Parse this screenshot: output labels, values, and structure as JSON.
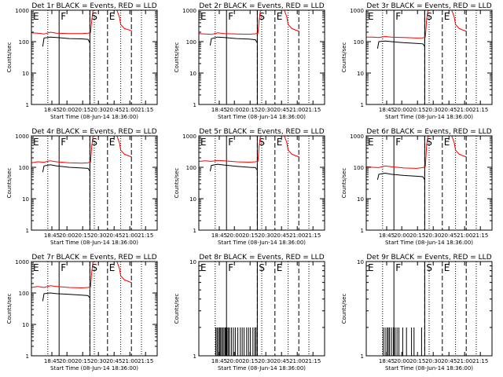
{
  "figure": {
    "layout": "3x3 grid of detector light curves",
    "y_scale": "log",
    "series_colors": {
      "events": "#000000",
      "lld": "#ff0000"
    }
  },
  "chart_data": [
    {
      "type": "line",
      "title": "Det 1r BLACK = Events, RED = LLD",
      "xlabel": "Start Time (08-Jun-14 18:36:00)",
      "ylabel": "Counts/sec",
      "xticks": [
        "18:45",
        "20:00",
        "20:15",
        "20:30",
        "20:45",
        "21:00",
        "21:15"
      ],
      "yticks": [
        "1",
        "10",
        "100",
        "1000"
      ],
      "ylim": [
        1,
        1000
      ],
      "markers": [
        {
          "label": "E",
          "x": 0.0,
          "style": "solid"
        },
        {
          "label": "F",
          "x": 0.22,
          "style": "solid"
        },
        {
          "label": "S",
          "x": 0.465,
          "style": "solid"
        },
        {
          "label": "E",
          "x": 0.605,
          "style": "dashed"
        }
      ],
      "dotted_lines": [
        0.13,
        0.5,
        0.71,
        0.875
      ],
      "dashed_lines": [
        0.465,
        0.605,
        0.795
      ],
      "series": [
        {
          "name": "LLD",
          "x": [
            0.0,
            0.05,
            0.1,
            0.15,
            0.2,
            0.3,
            0.4,
            0.45,
            0.47,
            0.48,
            0.49,
            0.5,
            0.6,
            0.68,
            0.7,
            0.71,
            0.74,
            0.8
          ],
          "values": [
            190,
            185,
            175,
            200,
            185,
            180,
            180,
            185,
            190,
            500,
            1000,
            1000,
            1000,
            1000,
            600,
            350,
            260,
            220
          ]
        },
        {
          "name": "Events",
          "x": [
            0.09,
            0.1,
            0.15,
            0.2,
            0.3,
            0.4,
            0.45,
            0.465
          ],
          "values": [
            70,
            130,
            140,
            135,
            125,
            122,
            118,
            90
          ]
        }
      ]
    },
    {
      "type": "line",
      "title": "Det 2r BLACK = Events, RED = LLD",
      "xlabel": "Start Time (08-Jun-14 18:36:00)",
      "ylabel": "Counts/sec",
      "xticks": [
        "18:45",
        "20:00",
        "20:15",
        "20:30",
        "20:45",
        "21:00",
        "21:15"
      ],
      "yticks": [
        "1",
        "10",
        "100",
        "1000"
      ],
      "ylim": [
        1,
        1000
      ],
      "markers": [
        {
          "label": "E",
          "x": 0.0,
          "style": "solid"
        },
        {
          "label": "F",
          "x": 0.22,
          "style": "solid"
        },
        {
          "label": "S",
          "x": 0.465,
          "style": "solid"
        },
        {
          "label": "E",
          "x": 0.605,
          "style": "dashed"
        }
      ],
      "dotted_lines": [
        0.13,
        0.5,
        0.71,
        0.875
      ],
      "dashed_lines": [
        0.465,
        0.605,
        0.795
      ],
      "series": [
        {
          "name": "LLD",
          "x": [
            0.0,
            0.05,
            0.1,
            0.15,
            0.2,
            0.3,
            0.4,
            0.45,
            0.47,
            0.48,
            0.49,
            0.5,
            0.6,
            0.68,
            0.7,
            0.71,
            0.74,
            0.8
          ],
          "values": [
            180,
            175,
            170,
            190,
            180,
            175,
            172,
            178,
            185,
            500,
            1000,
            1000,
            1000,
            1000,
            600,
            350,
            260,
            210
          ]
        },
        {
          "name": "Events",
          "x": [
            0.09,
            0.1,
            0.15,
            0.2,
            0.3,
            0.4,
            0.45,
            0.465
          ],
          "values": [
            75,
            125,
            140,
            135,
            125,
            120,
            115,
            90
          ]
        }
      ]
    },
    {
      "type": "line",
      "title": "Det 3r BLACK = Events, RED = LLD",
      "xlabel": "Start Time (08-Jun-14 18:36:00)",
      "ylabel": "Counts/sec",
      "xticks": [
        "18:45",
        "20:00",
        "20:15",
        "20:30",
        "20:45",
        "21:00",
        "21:15"
      ],
      "yticks": [
        "1",
        "10",
        "100",
        "1000"
      ],
      "ylim": [
        1,
        1000
      ],
      "markers": [
        {
          "label": "E",
          "x": 0.0,
          "style": "solid"
        },
        {
          "label": "F",
          "x": 0.22,
          "style": "solid"
        },
        {
          "label": "S",
          "x": 0.465,
          "style": "solid"
        },
        {
          "label": "E",
          "x": 0.605,
          "style": "dashed"
        }
      ],
      "dotted_lines": [
        0.13,
        0.5,
        0.71,
        0.875
      ],
      "dashed_lines": [
        0.465,
        0.605,
        0.795
      ],
      "series": [
        {
          "name": "LLD",
          "x": [
            0.0,
            0.05,
            0.1,
            0.15,
            0.2,
            0.3,
            0.4,
            0.45,
            0.47,
            0.48,
            0.49,
            0.5,
            0.6,
            0.68,
            0.7,
            0.71,
            0.74,
            0.8
          ],
          "values": [
            140,
            140,
            135,
            145,
            140,
            135,
            130,
            132,
            140,
            500,
            1000,
            1000,
            1000,
            1000,
            600,
            350,
            260,
            210
          ]
        },
        {
          "name": "Events",
          "x": [
            0.09,
            0.1,
            0.15,
            0.2,
            0.3,
            0.4,
            0.45,
            0.465
          ],
          "values": [
            60,
            100,
            105,
            100,
            92,
            88,
            85,
            70
          ]
        }
      ]
    },
    {
      "type": "line",
      "title": "Det 4r BLACK = Events, RED = LLD",
      "xlabel": "Start Time (08-Jun-14 18:36:00)",
      "ylabel": "Counts/sec",
      "xticks": [
        "18:45",
        "20:00",
        "20:15",
        "20:30",
        "20:45",
        "21:00",
        "21:15"
      ],
      "yticks": [
        "1",
        "10",
        "100",
        "1000"
      ],
      "ylim": [
        1,
        1000
      ],
      "markers": [
        {
          "label": "E",
          "x": 0.0,
          "style": "solid"
        },
        {
          "label": "F",
          "x": 0.22,
          "style": "solid"
        },
        {
          "label": "S",
          "x": 0.465,
          "style": "solid"
        },
        {
          "label": "E",
          "x": 0.605,
          "style": "dashed"
        }
      ],
      "dotted_lines": [
        0.13,
        0.5,
        0.71,
        0.875
      ],
      "dashed_lines": [
        0.465,
        0.605,
        0.795
      ],
      "series": [
        {
          "name": "LLD",
          "x": [
            0.0,
            0.05,
            0.1,
            0.15,
            0.2,
            0.3,
            0.4,
            0.45,
            0.47,
            0.48,
            0.49,
            0.5,
            0.6,
            0.68,
            0.7,
            0.71,
            0.74,
            0.8
          ],
          "values": [
            140,
            150,
            145,
            160,
            150,
            140,
            135,
            140,
            145,
            500,
            1000,
            1000,
            1000,
            1000,
            600,
            350,
            260,
            210
          ]
        },
        {
          "name": "Events",
          "x": [
            0.09,
            0.1,
            0.15,
            0.2,
            0.3,
            0.4,
            0.45,
            0.465
          ],
          "values": [
            70,
            110,
            120,
            110,
            100,
            95,
            92,
            75
          ]
        }
      ]
    },
    {
      "type": "line",
      "title": "Det 5r BLACK = Events, RED = LLD",
      "xlabel": "Start Time (08-Jun-14 18:36:00)",
      "ylabel": "Counts/sec",
      "xticks": [
        "18:45",
        "20:00",
        "20:15",
        "20:30",
        "20:45",
        "21:00",
        "21:15"
      ],
      "yticks": [
        "1",
        "10",
        "100",
        "1000"
      ],
      "ylim": [
        1,
        1000
      ],
      "markers": [
        {
          "label": "E",
          "x": 0.0,
          "style": "solid"
        },
        {
          "label": "F",
          "x": 0.22,
          "style": "solid"
        },
        {
          "label": "S",
          "x": 0.465,
          "style": "solid"
        },
        {
          "label": "E",
          "x": 0.605,
          "style": "dashed"
        }
      ],
      "dotted_lines": [
        0.13,
        0.5,
        0.71,
        0.875
      ],
      "dashed_lines": [
        0.465,
        0.605,
        0.795
      ],
      "series": [
        {
          "name": "LLD",
          "x": [
            0.0,
            0.05,
            0.1,
            0.15,
            0.2,
            0.3,
            0.4,
            0.45,
            0.47,
            0.48,
            0.49,
            0.5,
            0.6,
            0.68,
            0.7,
            0.71,
            0.74,
            0.8
          ],
          "values": [
            155,
            160,
            155,
            165,
            160,
            150,
            145,
            150,
            155,
            500,
            1000,
            1000,
            1000,
            1000,
            600,
            350,
            260,
            210
          ]
        },
        {
          "name": "Events",
          "x": [
            0.09,
            0.1,
            0.15,
            0.2,
            0.3,
            0.4,
            0.45,
            0.465
          ],
          "values": [
            75,
            115,
            125,
            118,
            108,
            100,
            98,
            80
          ]
        }
      ]
    },
    {
      "type": "line",
      "title": "Det 6r BLACK = Events, RED = LLD",
      "xlabel": "Start Time (08-Jun-14 18:36:00)",
      "ylabel": "Counts/sec",
      "xticks": [
        "18:45",
        "20:00",
        "20:15",
        "20:30",
        "20:45",
        "21:00",
        "21:15"
      ],
      "yticks": [
        "1",
        "10",
        "100",
        "1000"
      ],
      "ylim": [
        1,
        1000
      ],
      "markers": [
        {
          "label": "E",
          "x": 0.0,
          "style": "solid"
        },
        {
          "label": "F",
          "x": 0.22,
          "style": "solid"
        },
        {
          "label": "S",
          "x": 0.465,
          "style": "solid"
        },
        {
          "label": "E",
          "x": 0.605,
          "style": "dashed"
        }
      ],
      "dotted_lines": [
        0.13,
        0.5,
        0.71,
        0.875
      ],
      "dashed_lines": [
        0.465,
        0.605,
        0.795
      ],
      "series": [
        {
          "name": "LLD",
          "x": [
            0.0,
            0.05,
            0.1,
            0.15,
            0.2,
            0.3,
            0.4,
            0.45,
            0.47,
            0.48,
            0.49,
            0.5,
            0.6,
            0.68,
            0.7,
            0.71,
            0.74,
            0.8
          ],
          "values": [
            105,
            100,
            98,
            110,
            105,
            95,
            92,
            98,
            105,
            500,
            1000,
            1000,
            1000,
            1000,
            600,
            350,
            260,
            210
          ]
        },
        {
          "name": "Events",
          "x": [
            0.09,
            0.1,
            0.15,
            0.2,
            0.3,
            0.4,
            0.45,
            0.465
          ],
          "values": [
            40,
            60,
            65,
            60,
            55,
            52,
            50,
            40
          ]
        }
      ]
    },
    {
      "type": "line",
      "title": "Det 7r BLACK = Events, RED = LLD",
      "xlabel": "Start Time (08-Jun-14 18:36:00)",
      "ylabel": "Counts/sec",
      "xticks": [
        "18:45",
        "20:00",
        "20:15",
        "20:30",
        "20:45",
        "21:00",
        "21:15"
      ],
      "yticks": [
        "1",
        "10",
        "100",
        "1000"
      ],
      "ylim": [
        1,
        1000
      ],
      "markers": [
        {
          "label": "E",
          "x": 0.0,
          "style": "solid"
        },
        {
          "label": "F",
          "x": 0.22,
          "style": "solid"
        },
        {
          "label": "S",
          "x": 0.465,
          "style": "solid"
        },
        {
          "label": "E",
          "x": 0.605,
          "style": "dashed"
        }
      ],
      "dotted_lines": [
        0.13,
        0.5,
        0.71,
        0.875
      ],
      "dashed_lines": [
        0.465,
        0.605,
        0.795
      ],
      "series": [
        {
          "name": "LLD",
          "x": [
            0.0,
            0.05,
            0.1,
            0.15,
            0.2,
            0.3,
            0.4,
            0.45,
            0.47,
            0.48,
            0.49,
            0.5,
            0.6,
            0.68,
            0.7,
            0.71,
            0.74,
            0.8
          ],
          "values": [
            150,
            160,
            150,
            170,
            160,
            150,
            145,
            150,
            155,
            500,
            1000,
            1000,
            1000,
            1000,
            600,
            350,
            260,
            210
          ]
        },
        {
          "name": "Events",
          "x": [
            0.09,
            0.1,
            0.15,
            0.2,
            0.3,
            0.4,
            0.45,
            0.465
          ],
          "values": [
            55,
            95,
            100,
            95,
            90,
            85,
            82,
            70
          ]
        }
      ]
    },
    {
      "type": "line",
      "title": "Det 8r BLACK = Events, RED = LLD",
      "xlabel": "Start Time (08-Jun-14 18:36:00)",
      "ylabel": "Counts/sec",
      "xticks": [
        "18:45",
        "20:00",
        "20:15",
        "20:30",
        "20:45",
        "21:00",
        "21:15"
      ],
      "yticks": [
        "1",
        "10"
      ],
      "ylim": [
        1,
        10
      ],
      "markers": [
        {
          "label": "E",
          "x": 0.0,
          "style": "solid"
        },
        {
          "label": "F",
          "x": 0.22,
          "style": "solid"
        },
        {
          "label": "S",
          "x": 0.465,
          "style": "solid"
        },
        {
          "label": "E",
          "x": 0.605,
          "style": "dashed"
        }
      ],
      "dotted_lines": [
        0.13,
        0.5,
        0.71,
        0.875
      ],
      "dashed_lines": [
        0.465,
        0.605,
        0.795
      ],
      "series": [
        {
          "name": "Events",
          "spikes": true,
          "x": [
            0.135,
            0.145,
            0.155,
            0.165,
            0.17,
            0.18,
            0.19,
            0.2,
            0.21,
            0.215,
            0.225,
            0.235,
            0.245,
            0.26,
            0.275,
            0.29,
            0.31,
            0.33,
            0.345,
            0.36,
            0.38,
            0.395,
            0.41,
            0.43,
            0.445,
            0.455
          ],
          "values": [
            2,
            2,
            2,
            2,
            2,
            2,
            2,
            2,
            2,
            2,
            2,
            2,
            2,
            2,
            2,
            2,
            2,
            2,
            2,
            2,
            2,
            2,
            2,
            2,
            2,
            2
          ]
        }
      ]
    },
    {
      "type": "line",
      "title": "Det 9r BLACK = Events, RED = LLD",
      "xlabel": "Start Time (08-Jun-14 18:36:00)",
      "ylabel": "Counts/sec",
      "xticks": [
        "18:45",
        "20:00",
        "20:15",
        "20:30",
        "20:45",
        "21:00",
        "21:15"
      ],
      "yticks": [
        "1",
        "10"
      ],
      "ylim": [
        1,
        10
      ],
      "markers": [
        {
          "label": "E",
          "x": 0.0,
          "style": "solid"
        },
        {
          "label": "F",
          "x": 0.22,
          "style": "solid"
        },
        {
          "label": "S",
          "x": 0.465,
          "style": "solid"
        },
        {
          "label": "E",
          "x": 0.605,
          "style": "dashed"
        }
      ],
      "dotted_lines": [
        0.13,
        0.5,
        0.71,
        0.875
      ],
      "dashed_lines": [
        0.465,
        0.605,
        0.795
      ],
      "series": [
        {
          "name": "Events",
          "spikes": true,
          "x": [
            0.135,
            0.15,
            0.165,
            0.175,
            0.185,
            0.2,
            0.215,
            0.23,
            0.245,
            0.26,
            0.29,
            0.32,
            0.36,
            0.38,
            0.44
          ],
          "values": [
            2,
            2,
            2,
            2,
            2,
            2,
            2,
            2,
            2,
            2,
            2,
            2,
            2,
            2,
            2
          ]
        }
      ]
    }
  ]
}
